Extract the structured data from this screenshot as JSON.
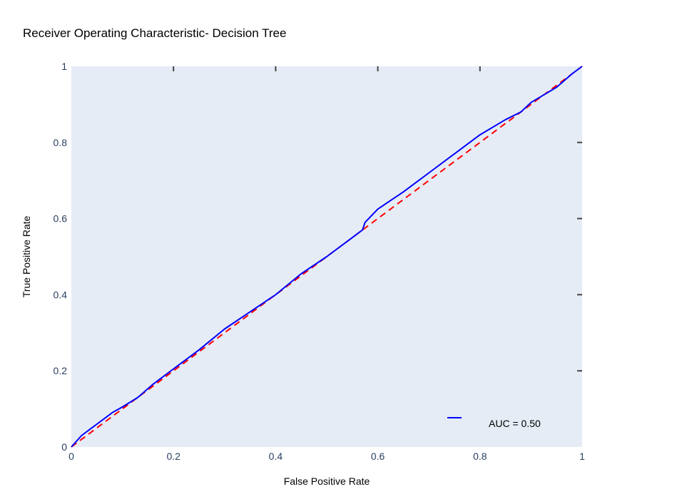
{
  "chart_data": {
    "type": "line",
    "title": "Receiver Operating Characteristic- Decision Tree",
    "xlabel": "False Positive Rate",
    "ylabel": "True Positive Rate",
    "xlim": [
      0,
      1
    ],
    "ylim": [
      0,
      1
    ],
    "x_ticks": [
      "0",
      "0.2",
      "0.4",
      "0.6",
      "0.8",
      "1"
    ],
    "y_ticks": [
      "0",
      "0.2",
      "0.4",
      "0.6",
      "0.8",
      "1"
    ],
    "grid": false,
    "legend_position": "bottom-right",
    "plot_background": "#e5ecf6",
    "series": [
      {
        "name": "AUC = 0.50",
        "color": "#0000ff",
        "style": "solid",
        "x": [
          0,
          0.02,
          0.05,
          0.08,
          0.1,
          0.13,
          0.16,
          0.2,
          0.25,
          0.3,
          0.35,
          0.4,
          0.45,
          0.5,
          0.55,
          0.57,
          0.575,
          0.6,
          0.65,
          0.7,
          0.75,
          0.8,
          0.85,
          0.88,
          0.9,
          0.95,
          0.98,
          1
        ],
        "y": [
          0,
          0.03,
          0.06,
          0.09,
          0.105,
          0.13,
          0.165,
          0.205,
          0.255,
          0.31,
          0.355,
          0.4,
          0.455,
          0.5,
          0.55,
          0.57,
          0.59,
          0.625,
          0.67,
          0.72,
          0.77,
          0.82,
          0.86,
          0.88,
          0.905,
          0.945,
          0.98,
          1
        ]
      },
      {
        "name": "",
        "color": "#ff0000",
        "style": "dash",
        "x": [
          0,
          1
        ],
        "y": [
          0,
          1
        ]
      }
    ]
  }
}
